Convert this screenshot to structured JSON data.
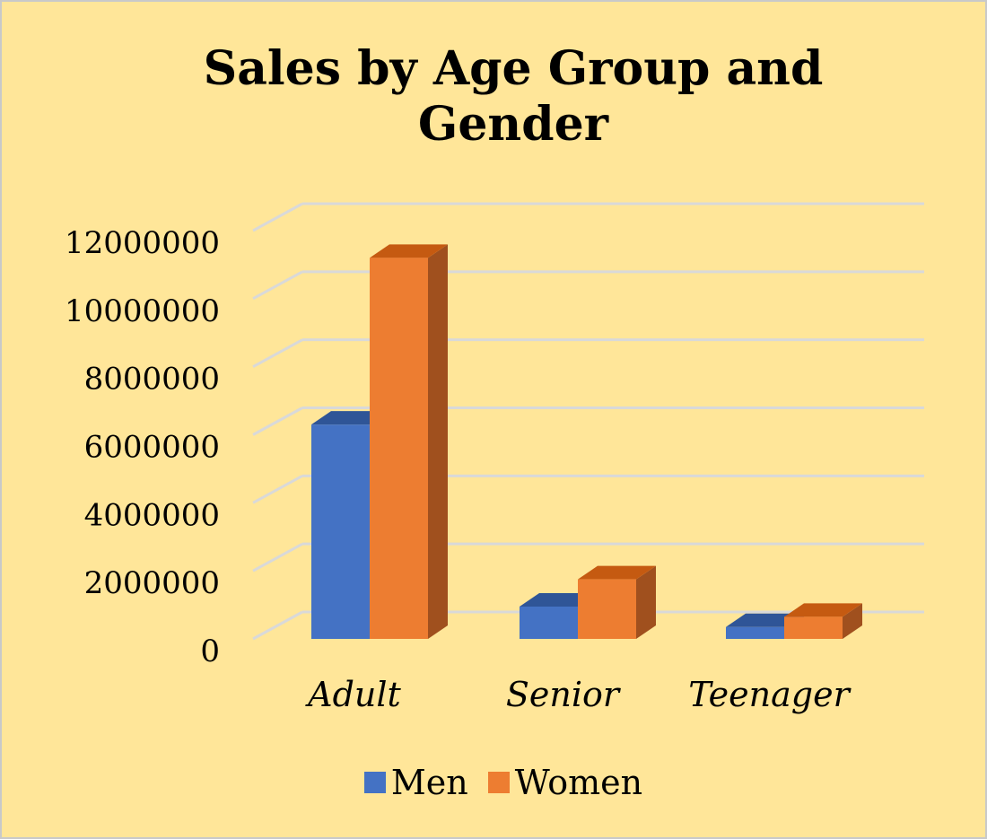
{
  "chart_data": {
    "type": "bar",
    "variant": "3d-clustered-column",
    "title": "Sales by Age Group and\nGender",
    "categories": [
      "Adult",
      "Senior",
      "Teenager"
    ],
    "series": [
      {
        "name": "Men",
        "color": "#4472c4",
        "top_color": "#2f5597",
        "side_color": "#2f5597",
        "values": [
          6300000,
          950000,
          350000
        ]
      },
      {
        "name": "Women",
        "color": "#ed7d31",
        "top_color": "#c55a11",
        "side_color": "#a0501e",
        "values": [
          11200000,
          1750000,
          650000
        ]
      }
    ],
    "yticks": [
      "0",
      "2000000",
      "4000000",
      "6000000",
      "8000000",
      "10000000",
      "12000000"
    ],
    "ylim": [
      0,
      12000000
    ],
    "ytick_step": 2000000,
    "xlabel": "",
    "ylabel": "",
    "grid": true,
    "legend_position": "bottom",
    "background_color": "#ffe699",
    "gridline_color": "#d9d9d9"
  }
}
